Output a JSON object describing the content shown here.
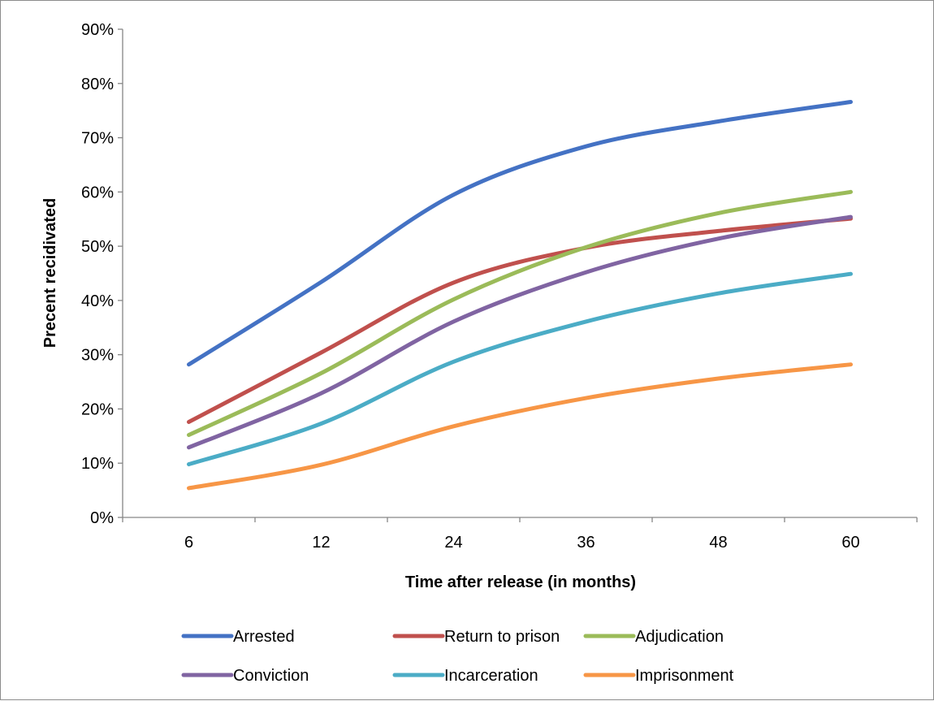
{
  "chart_data": {
    "type": "line",
    "xlabel": "Time after release (in months)",
    "ylabel": "Precent recidivated",
    "categories": [
      "6",
      "12",
      "24",
      "36",
      "48",
      "60"
    ],
    "ylim": [
      0,
      90
    ],
    "yticks": [
      "0%",
      "10%",
      "20%",
      "30%",
      "40%",
      "50%",
      "60%",
      "70%",
      "80%",
      "90%"
    ],
    "grid": false,
    "smooth": true,
    "legend_position": "bottom",
    "series": [
      {
        "name": "Arrested",
        "color": "#4472C4",
        "values": [
          28.2,
          43.4,
          59.5,
          68.4,
          73.0,
          76.6
        ]
      },
      {
        "name": "Return to prison",
        "color": "#C0504D",
        "values": [
          17.6,
          30.4,
          43.3,
          49.7,
          52.8,
          55.1
        ]
      },
      {
        "name": "Adjudication",
        "color": "#9BBB59",
        "values": [
          15.2,
          26.6,
          40.2,
          49.8,
          56.1,
          60.0
        ]
      },
      {
        "name": "Conviction",
        "color": "#8064A2",
        "values": [
          12.9,
          22.9,
          36.1,
          45.2,
          51.4,
          55.4
        ]
      },
      {
        "name": "Incarceration",
        "color": "#4BACC6",
        "values": [
          9.8,
          17.3,
          28.7,
          36.1,
          41.3,
          44.9
        ]
      },
      {
        "name": "Imprisonment",
        "color": "#F79646",
        "values": [
          5.4,
          9.7,
          16.8,
          22.0,
          25.6,
          28.2
        ]
      }
    ]
  }
}
